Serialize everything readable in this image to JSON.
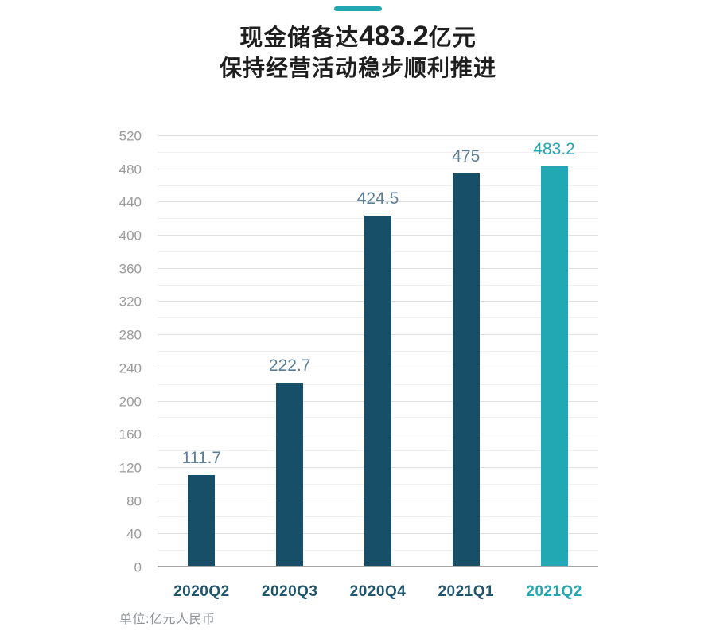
{
  "header": {
    "accent_color": "#21a8b2",
    "title_line1_prefix": "现金储备达",
    "title_line1_number": "483.2",
    "title_line1_suffix": "亿元",
    "title_line2": "保持经营活动稳步顺利推进"
  },
  "chart_data": {
    "type": "bar",
    "categories": [
      "2020Q2",
      "2020Q3",
      "2020Q4",
      "2021Q1",
      "2021Q2"
    ],
    "values": [
      111.7,
      222.7,
      424.5,
      475,
      483.2
    ],
    "value_labels": [
      "111.7",
      "222.7",
      "424.5",
      "475",
      "483.2"
    ],
    "highlight_index": 4,
    "title": "现金储备达483.2亿元 保持经营活动稳步顺利推进",
    "xlabel": "",
    "ylabel": "",
    "ylim": [
      0,
      520
    ],
    "ytick_step": 40,
    "grid_minor_step": 20,
    "grid": true,
    "legend": false,
    "bar_color": "#174f68",
    "highlight_color": "#21a8b2",
    "value_label_color": "#5d7f96",
    "category_color": "#20566d",
    "ytick_color": "#9b9b9b"
  },
  "footer": {
    "unit_note": "单位:亿元人民币"
  }
}
